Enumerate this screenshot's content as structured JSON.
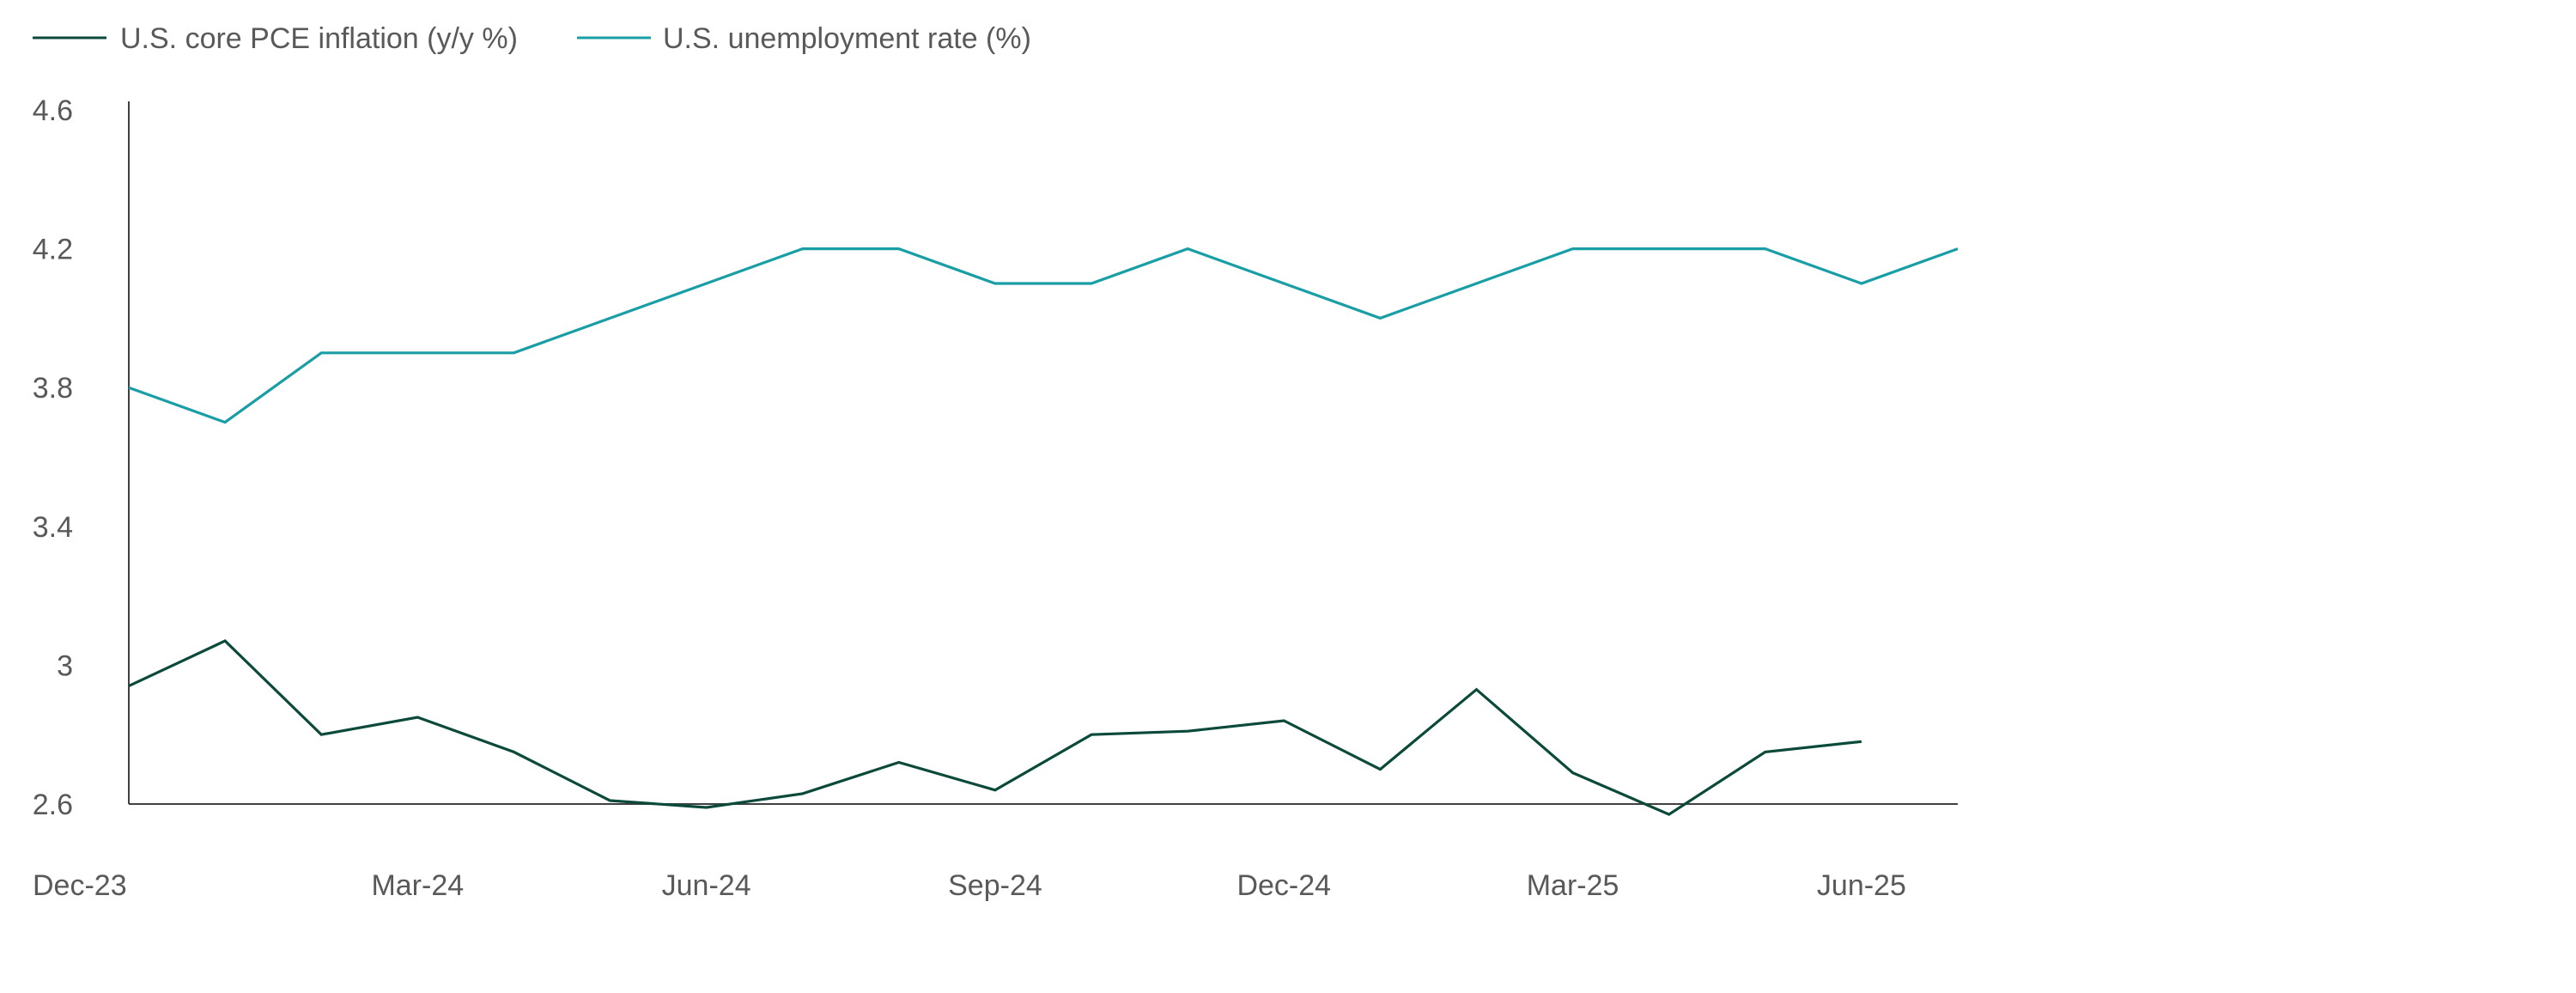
{
  "chart_data": {
    "type": "line",
    "title": "",
    "xlabel": "",
    "ylabel": "",
    "x": [
      "Dec-23",
      "Jan-24",
      "Feb-24",
      "Mar-24",
      "Apr-24",
      "May-24",
      "Jun-24",
      "Jul-24",
      "Aug-24",
      "Sep-24",
      "Oct-24",
      "Nov-24",
      "Dec-24",
      "Jan-25",
      "Feb-25",
      "Mar-25",
      "Apr-25",
      "May-25",
      "Jun-25",
      "Jul-25"
    ],
    "x_tick_labels": [
      "Dec-23",
      "Mar-24",
      "Jun-24",
      "Sep-24",
      "Dec-24",
      "Mar-25",
      "Jun-25"
    ],
    "y_tick_labels": [
      "4.6",
      "4.2",
      "3.8",
      "3.4",
      "3",
      "2.6"
    ],
    "ylim": [
      2.6,
      4.6
    ],
    "legend_position": "top-left",
    "grid": false,
    "series": [
      {
        "name": "U.S. core PCE inflation (y/y %)",
        "color": "#0b4a3a",
        "values": [
          2.94,
          3.07,
          2.8,
          2.85,
          2.75,
          2.61,
          2.59,
          2.63,
          2.72,
          2.64,
          2.8,
          2.81,
          2.84,
          2.7,
          2.93,
          2.69,
          2.57,
          2.75,
          2.78,
          null
        ]
      },
      {
        "name": "U.S. unemployment rate (%)",
        "color": "#1a9ea6",
        "values": [
          3.8,
          3.7,
          3.9,
          3.9,
          3.9,
          4.0,
          4.1,
          4.2,
          4.2,
          4.1,
          4.1,
          4.2,
          4.1,
          4.0,
          4.1,
          4.2,
          4.2,
          4.2,
          4.1,
          4.2
        ]
      }
    ]
  }
}
